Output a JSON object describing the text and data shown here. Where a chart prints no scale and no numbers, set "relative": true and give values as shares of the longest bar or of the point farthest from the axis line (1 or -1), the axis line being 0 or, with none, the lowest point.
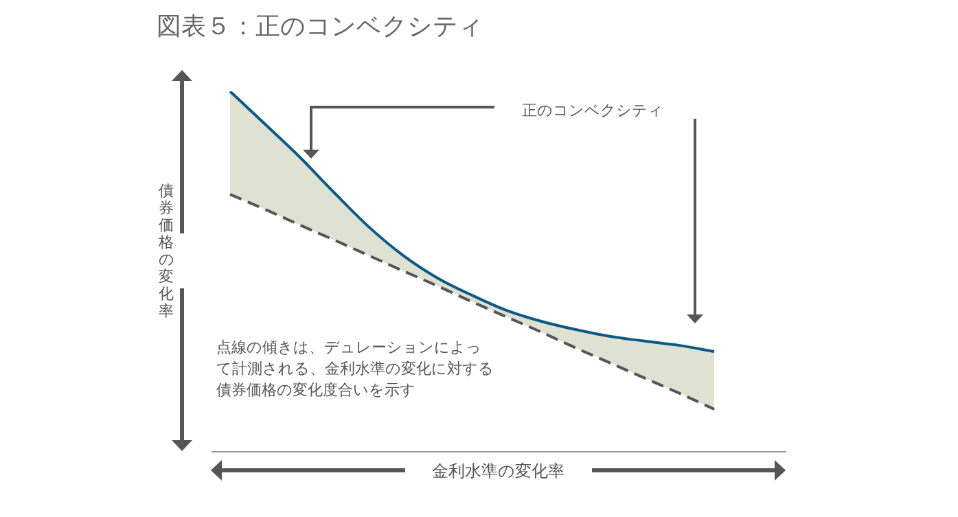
{
  "chart_data": {
    "type": "line",
    "title": "図表５：正のコンベクシティ",
    "xlabel": "金利水準の変化率",
    "ylabel": "債券価格の変化率",
    "relative": true,
    "legend": false,
    "marker": "none",
    "categories": [
      null,
      null,
      null,
      null,
      null,
      null,
      null,
      null,
      null,
      null,
      null,
      null,
      null,
      null,
      null
    ],
    "series": [
      {
        "color": "#0b5a85",
        "line_style": "solid",
        "values": [
          1.0,
          0.91,
          0.819,
          0.72,
          0.625,
          0.545,
          0.482,
          0.434,
          0.392,
          0.362,
          0.339,
          0.32,
          0.307,
          0.295,
          0.278
        ],
        "lower": [
          0.714,
          0.673,
          0.63,
          0.588,
          0.545,
          0.502,
          0.46,
          0.416,
          0.374,
          0.332,
          0.288,
          0.246,
          0.204,
          0.162,
          0.118
        ],
        "upper": [
          1.0,
          0.91,
          0.819,
          0.72,
          0.625,
          0.545,
          0.482,
          0.434,
          0.392,
          0.362,
          0.339,
          0.32,
          0.307,
          0.295,
          0.278
        ]
      },
      {
        "color": "#55555a",
        "line_style": "dashed",
        "values": [
          0.714,
          0.673,
          0.63,
          0.588,
          0.545,
          0.502,
          0.46,
          0.416,
          0.374,
          0.332,
          0.288,
          0.246,
          0.204,
          0.162,
          0.118
        ]
      }
    ],
    "annotations": [
      "正のコンベクシティ",
      "点線の傾きは、デュレーションによって計測される、金利水準の変化に対する債券価格の変化度合いを示す"
    ]
  }
}
